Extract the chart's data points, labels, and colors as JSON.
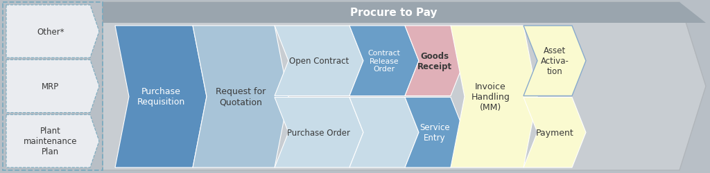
{
  "title": "Procure to Pay",
  "bg_color": "#b8bfc6",
  "fig_width": 10.24,
  "fig_height": 2.51,
  "left_labels": [
    "Other*",
    "MRP",
    "Plant\nmaintenance\nPlan"
  ],
  "left_chevron_color": "#eaecf0",
  "left_border_color": "#7aaabf",
  "outer_color": "#c8cdd2",
  "outer_border_color": "#b0b5ba",
  "title_bar_color": "#9aa5ae",
  "title_text_color": "#ffffff",
  "pr_color": "#5a8fbe",
  "pr_text_color": "#ffffff",
  "rfq_color": "#a8c4d8",
  "rfq_text_color": "#3a3a3a",
  "oc_color": "#c8dce8",
  "oc_text_color": "#3a3a3a",
  "cro_color": "#6a9ec8",
  "cro_text_color": "#ffffff",
  "po_color": "#c8dce8",
  "po_text_color": "#3a3a3a",
  "gr_color": "#e0b0b8",
  "gr_text_color": "#3a3a3a",
  "se_color": "#6a9ec8",
  "se_text_color": "#ffffff",
  "ih_color": "#fafad0",
  "ih_text_color": "#3a3a3a",
  "aa_color": "#fafad0",
  "aa_text_color": "#3a3a3a",
  "aa_border_color": "#88aacc",
  "pay_color": "#fafad0",
  "pay_text_color": "#3a3a3a"
}
